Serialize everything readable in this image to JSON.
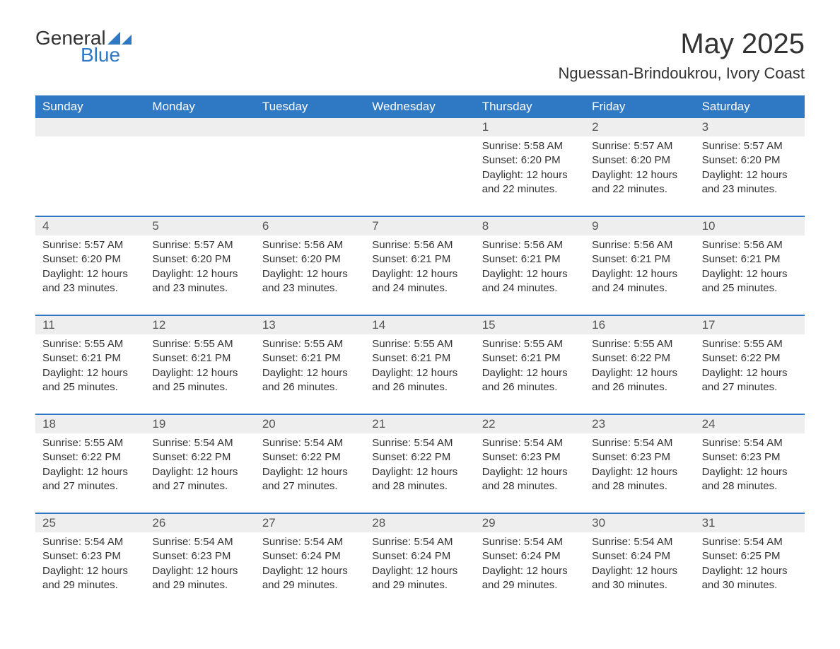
{
  "logo": {
    "text_general": "General",
    "text_blue": "Blue",
    "mark_color": "#2f78c4"
  },
  "title": "May 2025",
  "location": "Nguessan-Brindoukrou, Ivory Coast",
  "weekdays": [
    "Sunday",
    "Monday",
    "Tuesday",
    "Wednesday",
    "Thursday",
    "Friday",
    "Saturday"
  ],
  "colors": {
    "header_bg": "#2f78c4",
    "header_text": "#ffffff",
    "row_divider": "#2f78c4",
    "daynum_bg": "#eeeeee",
    "body_text": "#333333",
    "page_bg": "#ffffff"
  },
  "typography": {
    "title_fontsize": 40,
    "location_fontsize": 22,
    "weekday_fontsize": 17,
    "daynum_fontsize": 17,
    "detail_fontsize": 15,
    "logo_fontsize": 28
  },
  "layout": {
    "columns": 7,
    "rows": 5,
    "leading_blanks": 4
  },
  "labels": {
    "sunrise": "Sunrise:",
    "sunset": "Sunset:",
    "daylight": "Daylight:"
  },
  "days": [
    {
      "n": 1,
      "sunrise": "5:58 AM",
      "sunset": "6:20 PM",
      "daylight": "12 hours and 22 minutes."
    },
    {
      "n": 2,
      "sunrise": "5:57 AM",
      "sunset": "6:20 PM",
      "daylight": "12 hours and 22 minutes."
    },
    {
      "n": 3,
      "sunrise": "5:57 AM",
      "sunset": "6:20 PM",
      "daylight": "12 hours and 23 minutes."
    },
    {
      "n": 4,
      "sunrise": "5:57 AM",
      "sunset": "6:20 PM",
      "daylight": "12 hours and 23 minutes."
    },
    {
      "n": 5,
      "sunrise": "5:57 AM",
      "sunset": "6:20 PM",
      "daylight": "12 hours and 23 minutes."
    },
    {
      "n": 6,
      "sunrise": "5:56 AM",
      "sunset": "6:20 PM",
      "daylight": "12 hours and 23 minutes."
    },
    {
      "n": 7,
      "sunrise": "5:56 AM",
      "sunset": "6:21 PM",
      "daylight": "12 hours and 24 minutes."
    },
    {
      "n": 8,
      "sunrise": "5:56 AM",
      "sunset": "6:21 PM",
      "daylight": "12 hours and 24 minutes."
    },
    {
      "n": 9,
      "sunrise": "5:56 AM",
      "sunset": "6:21 PM",
      "daylight": "12 hours and 24 minutes."
    },
    {
      "n": 10,
      "sunrise": "5:56 AM",
      "sunset": "6:21 PM",
      "daylight": "12 hours and 25 minutes."
    },
    {
      "n": 11,
      "sunrise": "5:55 AM",
      "sunset": "6:21 PM",
      "daylight": "12 hours and 25 minutes."
    },
    {
      "n": 12,
      "sunrise": "5:55 AM",
      "sunset": "6:21 PM",
      "daylight": "12 hours and 25 minutes."
    },
    {
      "n": 13,
      "sunrise": "5:55 AM",
      "sunset": "6:21 PM",
      "daylight": "12 hours and 26 minutes."
    },
    {
      "n": 14,
      "sunrise": "5:55 AM",
      "sunset": "6:21 PM",
      "daylight": "12 hours and 26 minutes."
    },
    {
      "n": 15,
      "sunrise": "5:55 AM",
      "sunset": "6:21 PM",
      "daylight": "12 hours and 26 minutes."
    },
    {
      "n": 16,
      "sunrise": "5:55 AM",
      "sunset": "6:22 PM",
      "daylight": "12 hours and 26 minutes."
    },
    {
      "n": 17,
      "sunrise": "5:55 AM",
      "sunset": "6:22 PM",
      "daylight": "12 hours and 27 minutes."
    },
    {
      "n": 18,
      "sunrise": "5:55 AM",
      "sunset": "6:22 PM",
      "daylight": "12 hours and 27 minutes."
    },
    {
      "n": 19,
      "sunrise": "5:54 AM",
      "sunset": "6:22 PM",
      "daylight": "12 hours and 27 minutes."
    },
    {
      "n": 20,
      "sunrise": "5:54 AM",
      "sunset": "6:22 PM",
      "daylight": "12 hours and 27 minutes."
    },
    {
      "n": 21,
      "sunrise": "5:54 AM",
      "sunset": "6:22 PM",
      "daylight": "12 hours and 28 minutes."
    },
    {
      "n": 22,
      "sunrise": "5:54 AM",
      "sunset": "6:23 PM",
      "daylight": "12 hours and 28 minutes."
    },
    {
      "n": 23,
      "sunrise": "5:54 AM",
      "sunset": "6:23 PM",
      "daylight": "12 hours and 28 minutes."
    },
    {
      "n": 24,
      "sunrise": "5:54 AM",
      "sunset": "6:23 PM",
      "daylight": "12 hours and 28 minutes."
    },
    {
      "n": 25,
      "sunrise": "5:54 AM",
      "sunset": "6:23 PM",
      "daylight": "12 hours and 29 minutes."
    },
    {
      "n": 26,
      "sunrise": "5:54 AM",
      "sunset": "6:23 PM",
      "daylight": "12 hours and 29 minutes."
    },
    {
      "n": 27,
      "sunrise": "5:54 AM",
      "sunset": "6:24 PM",
      "daylight": "12 hours and 29 minutes."
    },
    {
      "n": 28,
      "sunrise": "5:54 AM",
      "sunset": "6:24 PM",
      "daylight": "12 hours and 29 minutes."
    },
    {
      "n": 29,
      "sunrise": "5:54 AM",
      "sunset": "6:24 PM",
      "daylight": "12 hours and 29 minutes."
    },
    {
      "n": 30,
      "sunrise": "5:54 AM",
      "sunset": "6:24 PM",
      "daylight": "12 hours and 30 minutes."
    },
    {
      "n": 31,
      "sunrise": "5:54 AM",
      "sunset": "6:25 PM",
      "daylight": "12 hours and 30 minutes."
    }
  ]
}
